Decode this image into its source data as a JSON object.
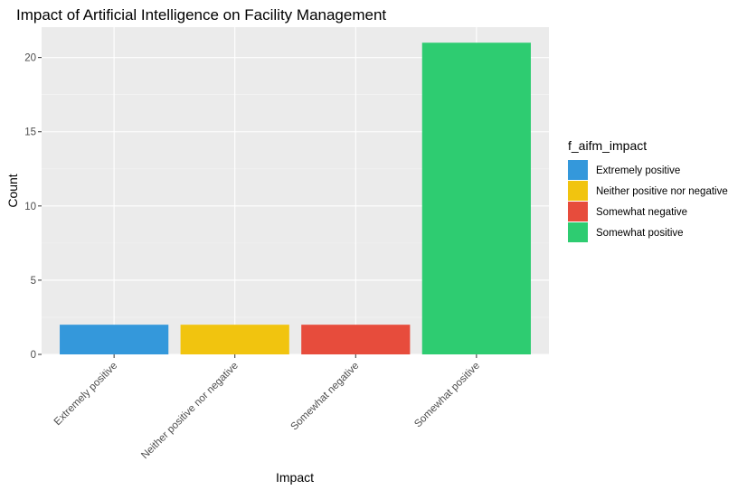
{
  "chart_data": {
    "type": "bar",
    "title": "Impact of Artificial Intelligence on Facility Management",
    "xlabel": "Impact",
    "ylabel": "Count",
    "categories": [
      "Extremely positive",
      "Neither positive nor negative",
      "Somewhat negative",
      "Somewhat positive"
    ],
    "values": [
      2,
      2,
      2,
      21
    ],
    "colors": [
      "#3498db",
      "#f1c40f",
      "#e74c3c",
      "#2ecc71"
    ],
    "ylim": [
      0,
      22.05
    ],
    "yticks": [
      0,
      5,
      10,
      15,
      20
    ],
    "grid": true,
    "legend": {
      "title": "f_aifm_impact",
      "position": "right",
      "entries": [
        "Extremely positive",
        "Neither positive nor negative",
        "Somewhat negative",
        "Somewhat positive"
      ]
    }
  }
}
